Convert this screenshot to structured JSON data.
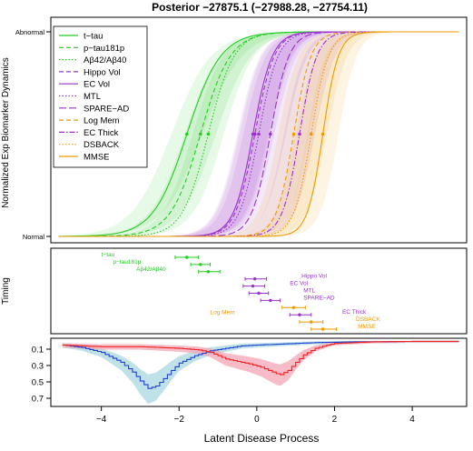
{
  "title": "Posterior −27875.1 (−27988.28, −27754.11)",
  "colors": {
    "green": "#22cc22",
    "purple": "#9933cc",
    "orange": "#ee9900",
    "red_band": "#f4a6b4",
    "red_line": "#ee2222",
    "blue_band": "#a8d8e0",
    "blue_line": "#1f3fd0",
    "frame": "#000000"
  },
  "chart_data": [
    {
      "type": "line",
      "panel": "dynamics",
      "ylabel": "Normalized Exp Biomarker Dynamics",
      "yticks": [
        "Normal",
        "Abnormal"
      ],
      "xlim": [
        -5.3,
        5.4
      ],
      "ylim": [
        0,
        1
      ],
      "grid": false,
      "legend_position": "top-left",
      "series": [
        {
          "name": "t−tau",
          "color": "#22cc22",
          "style": "solid",
          "midpoint": -1.8,
          "slope": 2.3
        },
        {
          "name": "p−tau181p",
          "color": "#22cc22",
          "style": "dashed",
          "midpoint": -1.45,
          "slope": 2.6
        },
        {
          "name": "Aβ42/Aβ40",
          "color": "#22cc22",
          "style": "dotted",
          "midpoint": -1.25,
          "slope": 3.0
        },
        {
          "name": "Hippo Vol",
          "color": "#9933cc",
          "style": "dashed",
          "midpoint": -0.05,
          "slope": 4.0
        },
        {
          "name": "EC Vol",
          "color": "#9933cc",
          "style": "solid",
          "midpoint": -0.1,
          "slope": 4.0
        },
        {
          "name": "MTL",
          "color": "#9933cc",
          "style": "dotted",
          "midpoint": 0.05,
          "slope": 4.0
        },
        {
          "name": "SPARE−AD",
          "color": "#9933cc",
          "style": "longdash",
          "midpoint": 0.35,
          "slope": 4.2
        },
        {
          "name": "Log Mem",
          "color": "#ee9900",
          "style": "dashed",
          "midpoint": 0.95,
          "slope": 4.5
        },
        {
          "name": "EC Thick",
          "color": "#9933cc",
          "style": "dashdot",
          "midpoint": 1.1,
          "slope": 4.5
        },
        {
          "name": "DSBACK",
          "color": "#ee9900",
          "style": "dotted",
          "midpoint": 1.4,
          "slope": 4.5
        },
        {
          "name": "MMSE",
          "color": "#ee9900",
          "style": "solid",
          "midpoint": 1.7,
          "slope": 5.0
        }
      ]
    },
    {
      "type": "scatter",
      "panel": "timing",
      "ylabel": "Timing",
      "xlim": [
        -5.3,
        5.4
      ],
      "points": [
        {
          "label": "t−tau",
          "color": "#22cc22",
          "x": -1.8,
          "lo": -2.1,
          "hi": -1.5
        },
        {
          "label": "p−tau181p",
          "color": "#22cc22",
          "x": -1.45,
          "lo": -1.7,
          "hi": -1.2
        },
        {
          "label": "Aβ42/Aβ40",
          "color": "#22cc22",
          "x": -1.25,
          "lo": -1.5,
          "hi": -0.95
        },
        {
          "label": "Hippo Vol",
          "color": "#9933cc",
          "x": -0.05,
          "lo": -0.3,
          "hi": 0.25
        },
        {
          "label": "EC Vol",
          "color": "#9933cc",
          "x": -0.1,
          "lo": -0.35,
          "hi": 0.2
        },
        {
          "label": "MTL",
          "color": "#9933cc",
          "x": 0.05,
          "lo": -0.2,
          "hi": 0.3
        },
        {
          "label": "SPARE−AD",
          "color": "#9933cc",
          "x": 0.35,
          "lo": 0.1,
          "hi": 0.6
        },
        {
          "label": "Log Mem",
          "color": "#ee9900",
          "x": 0.95,
          "lo": 0.65,
          "hi": 1.25
        },
        {
          "label": "EC Thick",
          "color": "#9933cc",
          "x": 1.1,
          "lo": 0.85,
          "hi": 1.4
        },
        {
          "label": "DSBACK",
          "color": "#ee9900",
          "x": 1.4,
          "lo": 1.1,
          "hi": 1.7
        },
        {
          "label": "MMSE",
          "color": "#ee9900",
          "x": 1.7,
          "lo": 1.4,
          "hi": 2.05
        }
      ]
    },
    {
      "type": "line",
      "panel": "density",
      "xlabel": "Latent Disease Process",
      "xlim": [
        -5.3,
        5.4
      ],
      "xticks": [
        -4,
        -2,
        0,
        2,
        4
      ],
      "ylim": [
        0.8,
        0.0
      ],
      "yticks": [
        0.1,
        0.3,
        0.5,
        0.7
      ],
      "series": [
        {
          "color": "#1f3fd0",
          "band": "#a8d8e0",
          "x": [
            -5.0,
            -4.5,
            -4.0,
            -3.5,
            -3.2,
            -3.0,
            -2.8,
            -2.6,
            -2.4,
            -2.2,
            -2.0,
            -1.6,
            -1.2,
            -0.8,
            -0.4,
            0.0,
            0.5,
            1.0,
            1.5,
            2.0,
            2.5,
            3.0,
            4.0,
            5.2
          ],
          "y": [
            0.05,
            0.08,
            0.14,
            0.26,
            0.38,
            0.49,
            0.58,
            0.55,
            0.46,
            0.36,
            0.27,
            0.18,
            0.12,
            0.09,
            0.06,
            0.05,
            0.04,
            0.03,
            0.02,
            0.015,
            0.01,
            0.01,
            0.005,
            0.005
          ]
        },
        {
          "color": "#ee2222",
          "band": "#f4a6b4",
          "x": [
            -5.0,
            -4.5,
            -4.0,
            -3.5,
            -3.0,
            -2.5,
            -2.0,
            -1.5,
            -1.2,
            -1.0,
            -0.8,
            -0.5,
            -0.2,
            0.1,
            0.3,
            0.5,
            0.6,
            0.8,
            1.0,
            1.2,
            1.5,
            1.8,
            2.0,
            2.5,
            3.0,
            4.0,
            5.2
          ],
          "y": [
            0.05,
            0.06,
            0.07,
            0.07,
            0.07,
            0.08,
            0.09,
            0.11,
            0.14,
            0.18,
            0.22,
            0.25,
            0.28,
            0.32,
            0.36,
            0.4,
            0.41,
            0.36,
            0.26,
            0.17,
            0.09,
            0.05,
            0.03,
            0.02,
            0.01,
            0.005,
            0.005
          ]
        }
      ]
    }
  ]
}
